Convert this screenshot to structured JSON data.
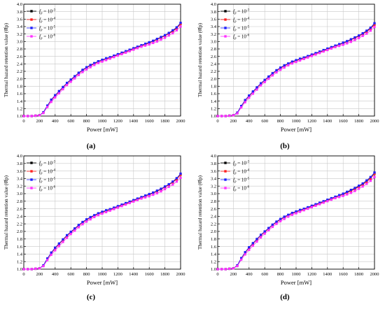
{
  "chart_data": [
    {
      "type": "line",
      "panel_label": "(a)",
      "xlabel": "Power [mW]",
      "ylabel": "Thermal hazard retention value (θ̂fp)",
      "xlim": [
        0,
        2000
      ],
      "ylim": [
        1.0,
        4.0
      ],
      "xticks": [
        0,
        200,
        400,
        600,
        800,
        1000,
        1200,
        1400,
        1600,
        1800,
        2000
      ],
      "yticks": [
        1.0,
        1.2,
        1.4,
        1.6,
        1.8,
        2.0,
        2.2,
        2.4,
        2.6,
        2.8,
        3.0,
        3.2,
        3.4,
        3.6,
        3.8,
        4.0
      ],
      "grid": true,
      "legend_position": "top-left",
      "x": [
        0,
        50,
        100,
        150,
        200,
        250,
        300,
        350,
        400,
        450,
        500,
        550,
        600,
        650,
        700,
        750,
        800,
        850,
        900,
        950,
        1000,
        1050,
        1100,
        1150,
        1200,
        1250,
        1300,
        1350,
        1400,
        1450,
        1500,
        1550,
        1600,
        1650,
        1700,
        1750,
        1800,
        1850,
        1900,
        1950,
        2000
      ],
      "series": [
        {
          "name": "fp = 10⁻³",
          "color": "#000000",
          "values": [
            1.0,
            1.0,
            1.0,
            1.01,
            1.02,
            1.1,
            1.28,
            1.43,
            1.55,
            1.66,
            1.77,
            1.88,
            1.97,
            2.06,
            2.15,
            2.23,
            2.3,
            2.36,
            2.41,
            2.46,
            2.5,
            2.54,
            2.57,
            2.61,
            2.65,
            2.69,
            2.73,
            2.77,
            2.81,
            2.85,
            2.89,
            2.93,
            2.97,
            3.01,
            3.06,
            3.11,
            3.16,
            3.22,
            3.29,
            3.37,
            3.49
          ]
        },
        {
          "name": "fp = 10⁻⁴",
          "color": "#ff2020",
          "values": [
            1.0,
            1.0,
            1.0,
            1.01,
            1.02,
            1.1,
            1.27,
            1.42,
            1.54,
            1.65,
            1.76,
            1.87,
            1.96,
            2.05,
            2.14,
            2.22,
            2.29,
            2.35,
            2.4,
            2.45,
            2.49,
            2.53,
            2.56,
            2.6,
            2.64,
            2.68,
            2.72,
            2.76,
            2.8,
            2.84,
            2.88,
            2.92,
            2.96,
            3.0,
            3.05,
            3.1,
            3.15,
            3.21,
            3.27,
            3.35,
            3.47
          ]
        },
        {
          "name": "fp = 10⁻⁵",
          "color": "#2020ff",
          "values": [
            1.0,
            1.0,
            1.0,
            1.01,
            1.02,
            1.1,
            1.28,
            1.44,
            1.56,
            1.67,
            1.78,
            1.89,
            1.98,
            2.07,
            2.16,
            2.24,
            2.31,
            2.37,
            2.42,
            2.47,
            2.51,
            2.55,
            2.58,
            2.62,
            2.66,
            2.7,
            2.74,
            2.78,
            2.82,
            2.86,
            2.9,
            2.94,
            2.98,
            3.02,
            3.07,
            3.12,
            3.17,
            3.23,
            3.3,
            3.38,
            3.5
          ]
        },
        {
          "name": "fp = 10⁻⁶",
          "color": "#ff30ff",
          "values": [
            1.0,
            1.0,
            1.0,
            1.01,
            1.02,
            1.08,
            1.24,
            1.38,
            1.5,
            1.61,
            1.72,
            1.83,
            1.92,
            2.01,
            2.1,
            2.18,
            2.25,
            2.31,
            2.37,
            2.42,
            2.46,
            2.5,
            2.54,
            2.58,
            2.62,
            2.66,
            2.7,
            2.74,
            2.78,
            2.82,
            2.86,
            2.89,
            2.92,
            2.96,
            3.0,
            3.05,
            3.1,
            3.16,
            3.22,
            3.3,
            3.4
          ]
        }
      ]
    },
    {
      "type": "line",
      "panel_label": "(b)",
      "xlabel": "Power [mW]",
      "ylabel": "Thermal hazard retention value (θ̂fp)",
      "xlim": [
        0,
        2000
      ],
      "ylim": [
        1.0,
        4.0
      ],
      "xticks": [
        0,
        200,
        400,
        600,
        800,
        1000,
        1200,
        1400,
        1600,
        1800,
        2000
      ],
      "yticks": [
        1.0,
        1.2,
        1.4,
        1.6,
        1.8,
        2.0,
        2.2,
        2.4,
        2.6,
        2.8,
        3.0,
        3.2,
        3.4,
        3.6,
        3.8,
        4.0
      ],
      "grid": true,
      "legend_position": "top-left",
      "x": [
        0,
        50,
        100,
        150,
        200,
        250,
        300,
        350,
        400,
        450,
        500,
        550,
        600,
        650,
        700,
        750,
        800,
        850,
        900,
        950,
        1000,
        1050,
        1100,
        1150,
        1200,
        1250,
        1300,
        1350,
        1400,
        1450,
        1500,
        1550,
        1600,
        1650,
        1700,
        1750,
        1800,
        1850,
        1900,
        1950,
        2000
      ],
      "series": [
        {
          "name": "fp = 10⁻³",
          "color": "#000000",
          "values": [
            1.0,
            1.0,
            1.0,
            1.01,
            1.02,
            1.09,
            1.27,
            1.42,
            1.54,
            1.65,
            1.76,
            1.87,
            1.96,
            2.05,
            2.14,
            2.22,
            2.29,
            2.35,
            2.4,
            2.45,
            2.49,
            2.53,
            2.56,
            2.6,
            2.64,
            2.68,
            2.72,
            2.76,
            2.8,
            2.84,
            2.88,
            2.92,
            2.96,
            3.0,
            3.05,
            3.1,
            3.15,
            3.21,
            3.28,
            3.36,
            3.48
          ]
        },
        {
          "name": "fp = 10⁻⁴",
          "color": "#ff2020",
          "values": [
            1.0,
            1.0,
            1.0,
            1.01,
            1.02,
            1.09,
            1.26,
            1.41,
            1.53,
            1.64,
            1.75,
            1.86,
            1.95,
            2.04,
            2.13,
            2.21,
            2.28,
            2.34,
            2.39,
            2.44,
            2.48,
            2.52,
            2.55,
            2.59,
            2.63,
            2.67,
            2.71,
            2.75,
            2.79,
            2.83,
            2.87,
            2.91,
            2.95,
            2.99,
            3.04,
            3.09,
            3.14,
            3.2,
            3.26,
            3.34,
            3.45
          ]
        },
        {
          "name": "fp = 10⁻⁵",
          "color": "#2020ff",
          "values": [
            1.0,
            1.0,
            1.0,
            1.01,
            1.02,
            1.09,
            1.27,
            1.43,
            1.55,
            1.66,
            1.77,
            1.88,
            1.97,
            2.06,
            2.15,
            2.23,
            2.3,
            2.36,
            2.41,
            2.46,
            2.5,
            2.54,
            2.57,
            2.61,
            2.65,
            2.69,
            2.73,
            2.77,
            2.81,
            2.85,
            2.89,
            2.93,
            2.97,
            3.01,
            3.06,
            3.11,
            3.16,
            3.22,
            3.29,
            3.37,
            3.49
          ]
        },
        {
          "name": "fp = 10⁻⁶",
          "color": "#ff30ff",
          "values": [
            1.0,
            1.0,
            1.0,
            1.01,
            1.02,
            1.07,
            1.23,
            1.37,
            1.49,
            1.6,
            1.71,
            1.82,
            1.91,
            2.0,
            2.09,
            2.17,
            2.24,
            2.3,
            2.36,
            2.41,
            2.45,
            2.49,
            2.53,
            2.57,
            2.61,
            2.65,
            2.69,
            2.73,
            2.77,
            2.81,
            2.85,
            2.88,
            2.91,
            2.95,
            2.99,
            3.04,
            3.09,
            3.15,
            3.21,
            3.29,
            3.39
          ]
        }
      ]
    },
    {
      "type": "line",
      "panel_label": "(c)",
      "xlabel": "Power [mW]",
      "ylabel": "Thermal hazard retention value (θ̂fp)",
      "xlim": [
        0,
        2000
      ],
      "ylim": [
        1.0,
        4.0
      ],
      "xticks": [
        0,
        200,
        400,
        600,
        800,
        1000,
        1200,
        1400,
        1600,
        1800,
        2000
      ],
      "yticks": [
        1.0,
        1.2,
        1.4,
        1.6,
        1.8,
        2.0,
        2.2,
        2.4,
        2.6,
        2.8,
        3.0,
        3.2,
        3.4,
        3.6,
        3.8,
        4.0
      ],
      "grid": true,
      "legend_position": "top-left",
      "x": [
        0,
        50,
        100,
        150,
        200,
        250,
        300,
        350,
        400,
        450,
        500,
        550,
        600,
        650,
        700,
        750,
        800,
        850,
        900,
        950,
        1000,
        1050,
        1100,
        1150,
        1200,
        1250,
        1300,
        1350,
        1400,
        1450,
        1500,
        1550,
        1600,
        1650,
        1700,
        1750,
        1800,
        1850,
        1900,
        1950,
        2000
      ],
      "series": [
        {
          "name": "fp = 10⁻³",
          "color": "#000000",
          "values": [
            1.0,
            1.0,
            1.0,
            1.01,
            1.02,
            1.1,
            1.28,
            1.43,
            1.56,
            1.67,
            1.78,
            1.89,
            1.98,
            2.07,
            2.16,
            2.24,
            2.31,
            2.37,
            2.42,
            2.47,
            2.51,
            2.55,
            2.58,
            2.62,
            2.66,
            2.7,
            2.74,
            2.78,
            2.82,
            2.86,
            2.9,
            2.94,
            2.98,
            3.02,
            3.07,
            3.12,
            3.18,
            3.24,
            3.31,
            3.4,
            3.52
          ]
        },
        {
          "name": "fp = 10⁻⁴",
          "color": "#ff2020",
          "values": [
            1.0,
            1.0,
            1.0,
            1.01,
            1.02,
            1.1,
            1.27,
            1.42,
            1.55,
            1.66,
            1.77,
            1.88,
            1.97,
            2.06,
            2.15,
            2.23,
            2.3,
            2.36,
            2.41,
            2.46,
            2.5,
            2.54,
            2.57,
            2.61,
            2.65,
            2.69,
            2.73,
            2.77,
            2.81,
            2.85,
            2.89,
            2.93,
            2.97,
            3.01,
            3.06,
            3.11,
            3.17,
            3.23,
            3.3,
            3.38,
            3.5
          ]
        },
        {
          "name": "fp = 10⁻⁵",
          "color": "#2020ff",
          "values": [
            1.0,
            1.0,
            1.0,
            1.01,
            1.02,
            1.1,
            1.28,
            1.44,
            1.57,
            1.68,
            1.79,
            1.9,
            1.99,
            2.08,
            2.17,
            2.25,
            2.32,
            2.38,
            2.43,
            2.48,
            2.52,
            2.56,
            2.59,
            2.63,
            2.67,
            2.71,
            2.75,
            2.79,
            2.83,
            2.87,
            2.91,
            2.95,
            2.99,
            3.03,
            3.08,
            3.13,
            3.19,
            3.25,
            3.32,
            3.41,
            3.53
          ]
        },
        {
          "name": "fp = 10⁻⁶",
          "color": "#ff30ff",
          "values": [
            1.0,
            1.0,
            1.0,
            1.01,
            1.02,
            1.08,
            1.24,
            1.38,
            1.5,
            1.61,
            1.72,
            1.83,
            1.93,
            2.02,
            2.11,
            2.19,
            2.26,
            2.32,
            2.38,
            2.43,
            2.47,
            2.51,
            2.55,
            2.59,
            2.63,
            2.67,
            2.71,
            2.75,
            2.79,
            2.83,
            2.87,
            2.9,
            2.93,
            2.97,
            3.01,
            3.06,
            3.12,
            3.18,
            3.24,
            3.32,
            3.42
          ]
        }
      ]
    },
    {
      "type": "line",
      "panel_label": "(d)",
      "xlabel": "Power [mW]",
      "ylabel": "Thermal hazard retention value (θ̂fp)",
      "xlim": [
        0,
        2000
      ],
      "ylim": [
        1.0,
        4.0
      ],
      "xticks": [
        0,
        200,
        400,
        600,
        800,
        1000,
        1200,
        1400,
        1600,
        1800,
        2000
      ],
      "yticks": [
        1.0,
        1.2,
        1.4,
        1.6,
        1.8,
        2.0,
        2.2,
        2.4,
        2.6,
        2.8,
        3.0,
        3.2,
        3.4,
        3.6,
        3.8,
        4.0
      ],
      "grid": true,
      "legend_position": "top-left",
      "x": [
        0,
        50,
        100,
        150,
        200,
        250,
        300,
        350,
        400,
        450,
        500,
        550,
        600,
        650,
        700,
        750,
        800,
        850,
        900,
        950,
        1000,
        1050,
        1100,
        1150,
        1200,
        1250,
        1300,
        1350,
        1400,
        1450,
        1500,
        1550,
        1600,
        1650,
        1700,
        1750,
        1800,
        1850,
        1900,
        1950,
        2000
      ],
      "series": [
        {
          "name": "fp = 10⁻³",
          "color": "#000000",
          "values": [
            1.0,
            1.0,
            1.0,
            1.01,
            1.02,
            1.1,
            1.29,
            1.44,
            1.57,
            1.68,
            1.79,
            1.9,
            1.99,
            2.08,
            2.17,
            2.25,
            2.32,
            2.38,
            2.43,
            2.48,
            2.52,
            2.56,
            2.59,
            2.63,
            2.67,
            2.71,
            2.75,
            2.79,
            2.83,
            2.87,
            2.91,
            2.95,
            2.99,
            3.04,
            3.09,
            3.14,
            3.2,
            3.26,
            3.34,
            3.43,
            3.55
          ]
        },
        {
          "name": "fp = 10⁻⁴",
          "color": "#ff2020",
          "values": [
            1.0,
            1.0,
            1.0,
            1.01,
            1.02,
            1.1,
            1.28,
            1.43,
            1.56,
            1.67,
            1.78,
            1.89,
            1.98,
            2.07,
            2.16,
            2.24,
            2.31,
            2.37,
            2.42,
            2.47,
            2.51,
            2.55,
            2.58,
            2.62,
            2.66,
            2.7,
            2.74,
            2.78,
            2.82,
            2.86,
            2.9,
            2.94,
            2.98,
            3.02,
            3.07,
            3.12,
            3.18,
            3.24,
            3.31,
            3.4,
            3.52
          ]
        },
        {
          "name": "fp = 10⁻⁵",
          "color": "#2020ff",
          "values": [
            1.0,
            1.0,
            1.0,
            1.01,
            1.02,
            1.1,
            1.29,
            1.45,
            1.58,
            1.69,
            1.8,
            1.91,
            2.0,
            2.09,
            2.18,
            2.26,
            2.33,
            2.39,
            2.44,
            2.49,
            2.53,
            2.57,
            2.6,
            2.64,
            2.68,
            2.72,
            2.76,
            2.8,
            2.84,
            2.88,
            2.92,
            2.96,
            3.0,
            3.05,
            3.1,
            3.15,
            3.21,
            3.27,
            3.35,
            3.44,
            3.56
          ]
        },
        {
          "name": "fp = 10⁻⁶",
          "color": "#ff30ff",
          "values": [
            1.0,
            1.0,
            1.0,
            1.01,
            1.02,
            1.08,
            1.25,
            1.39,
            1.51,
            1.62,
            1.73,
            1.84,
            1.94,
            2.03,
            2.12,
            2.2,
            2.27,
            2.33,
            2.39,
            2.44,
            2.48,
            2.52,
            2.56,
            2.6,
            2.64,
            2.68,
            2.72,
            2.76,
            2.8,
            2.84,
            2.88,
            2.91,
            2.94,
            2.98,
            3.02,
            3.07,
            3.13,
            3.19,
            3.26,
            3.34,
            3.44
          ]
        }
      ]
    }
  ]
}
